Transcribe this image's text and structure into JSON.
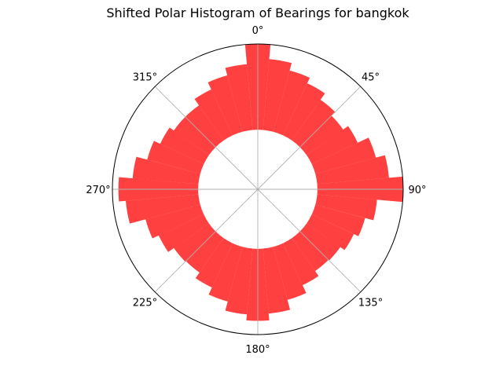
{
  "chart_data": {
    "type": "polar_bar",
    "title": "Shifted Polar Histogram of Bearings for bangkok",
    "theta_direction": "clockwise",
    "theta_zero": "top",
    "theta_tick_labels": [
      "0°",
      "45°",
      "90°",
      "135°",
      "180°",
      "225°",
      "270°",
      "315°"
    ],
    "theta_ticks_deg": [
      0,
      45,
      90,
      135,
      180,
      225,
      270,
      315
    ],
    "radial_grid": false,
    "bar_color": "#ff0000",
    "bar_alpha": 0.75,
    "bin_width_deg": 10,
    "inner_radius_fraction": 0.41,
    "bins": [
      {
        "center": 0,
        "value": 1.0
      },
      {
        "center": 10,
        "value": 0.83
      },
      {
        "center": 20,
        "value": 0.74
      },
      {
        "center": 30,
        "value": 0.67
      },
      {
        "center": 40,
        "value": 0.58
      },
      {
        "center": 50,
        "value": 0.52
      },
      {
        "center": 60,
        "value": 0.59
      },
      {
        "center": 70,
        "value": 0.73
      },
      {
        "center": 80,
        "value": 0.84
      },
      {
        "center": 90,
        "value": 1.0
      },
      {
        "center": 100,
        "value": 0.7
      },
      {
        "center": 110,
        "value": 0.6
      },
      {
        "center": 120,
        "value": 0.54
      },
      {
        "center": 130,
        "value": 0.48
      },
      {
        "center": 140,
        "value": 0.47
      },
      {
        "center": 150,
        "value": 0.54
      },
      {
        "center": 160,
        "value": 0.64
      },
      {
        "center": 170,
        "value": 0.76
      },
      {
        "center": 180,
        "value": 0.84
      },
      {
        "center": 190,
        "value": 0.77
      },
      {
        "center": 200,
        "value": 0.66
      },
      {
        "center": 210,
        "value": 0.57
      },
      {
        "center": 220,
        "value": 0.49
      },
      {
        "center": 230,
        "value": 0.5
      },
      {
        "center": 240,
        "value": 0.58
      },
      {
        "center": 250,
        "value": 0.66
      },
      {
        "center": 260,
        "value": 0.85
      },
      {
        "center": 270,
        "value": 0.93
      },
      {
        "center": 280,
        "value": 0.77
      },
      {
        "center": 290,
        "value": 0.64
      },
      {
        "center": 300,
        "value": 0.56
      },
      {
        "center": 310,
        "value": 0.5
      },
      {
        "center": 320,
        "value": 0.5
      },
      {
        "center": 330,
        "value": 0.59
      },
      {
        "center": 340,
        "value": 0.68
      },
      {
        "center": 350,
        "value": 0.77
      }
    ]
  }
}
